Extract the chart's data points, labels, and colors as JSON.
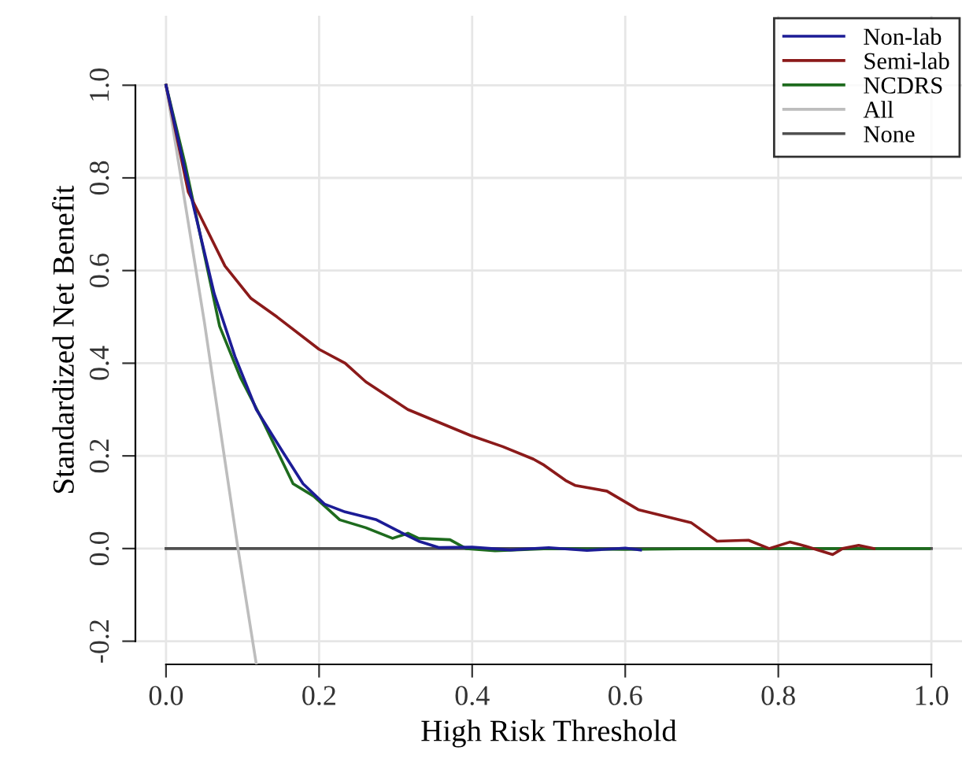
{
  "chart_data": {
    "type": "line",
    "xlabel": "High Risk Threshold",
    "ylabel": "Standardized Net Benefit",
    "xlim": [
      -0.04,
      1.04
    ],
    "ylim": [
      -0.25,
      1.15
    ],
    "xticks": [
      {
        "value": 0,
        "label": "0.0"
      },
      0.2,
      0.4,
      0.6,
      0.8,
      {
        "value": 1,
        "label": "1.0"
      }
    ],
    "yticks": [
      -0.2,
      {
        "value": 0,
        "label": "0.0"
      },
      0.2,
      0.4,
      0.6,
      0.8,
      {
        "value": 1,
        "label": "1.0"
      }
    ],
    "grid": true,
    "legend": "top right",
    "marker": "none",
    "line_style": "solid",
    "series": [
      {
        "name": "Non-lab",
        "color": "#1c1c96",
        "x": [
          0,
          0.025,
          0.063,
          0.09,
          0.118,
          0.152,
          0.179,
          0.207,
          0.234,
          0.275,
          0.302,
          0.33,
          0.357,
          0.4,
          0.45,
          0.5,
          0.55,
          0.6,
          0.62
        ],
        "values": [
          1,
          0.815,
          0.55,
          0.415,
          0.3,
          0.21,
          0.14,
          0.096,
          0.079,
          0.062,
          0.039,
          0.016,
          0.002,
          0.003,
          -0.003,
          0.002,
          -0.004,
          0.001,
          -0.003
        ]
      },
      {
        "name": "Semi-lab",
        "color": "#8b1a1a",
        "x": [
          0,
          0.029,
          0.077,
          0.111,
          0.145,
          0.2,
          0.234,
          0.261,
          0.316,
          0.398,
          0.44,
          0.48,
          0.494,
          0.522,
          0.535,
          0.576,
          0.617,
          0.686,
          0.72,
          0.761,
          0.788,
          0.815,
          0.836,
          0.871,
          0.884,
          0.905,
          0.925
        ],
        "values": [
          1,
          0.77,
          0.61,
          0.54,
          0.5,
          0.43,
          0.4,
          0.36,
          0.3,
          0.244,
          0.22,
          0.193,
          0.18,
          0.147,
          0.136,
          0.124,
          0.084,
          0.056,
          0.016,
          0.018,
          0,
          0.014,
          0.005,
          -0.013,
          0,
          0.007,
          0
        ]
      },
      {
        "name": "NCDRS",
        "color": "#1e6b1e",
        "x": [
          0,
          0.025,
          0.07,
          0.097,
          0.125,
          0.166,
          0.193,
          0.227,
          0.261,
          0.296,
          0.316,
          0.33,
          0.371,
          0.392,
          0.43,
          0.5,
          0.6,
          0.7,
          0.8,
          0.9,
          0.997
        ],
        "values": [
          1,
          0.83,
          0.48,
          0.37,
          0.28,
          0.14,
          0.113,
          0.062,
          0.045,
          0.022,
          0.033,
          0.022,
          0.019,
          0,
          -0.005,
          0,
          -0.002,
          0,
          0,
          0,
          0
        ]
      },
      {
        "name": "All",
        "color": "#bdbdbd",
        "x": [
          0,
          0.05,
          0.094,
          0.118
        ],
        "values": [
          1,
          0.49,
          0,
          -0.25
        ]
      },
      {
        "name": "None",
        "color": "#505050",
        "x": [
          0,
          1
        ],
        "values": [
          0,
          0
        ]
      }
    ]
  }
}
